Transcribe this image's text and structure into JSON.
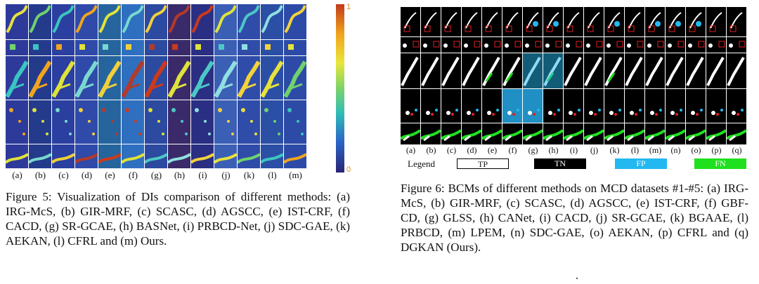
{
  "figure5": {
    "panel_labels": [
      "(a)",
      "(b)",
      "(c)",
      "(d)",
      "(e)",
      "(f)",
      "(g)",
      "(h)",
      "(i)",
      "(j)",
      "(k)",
      "(l)",
      "(m)"
    ],
    "colorbar": {
      "max_label": "1",
      "min_label": "0"
    },
    "caption": "Figure 5: Visualization of DIs comparison of different methods: (a) IRG-McS, (b) GIR-MRF, (c) SCASC, (d) AGSCC, (e) IST-CRF, (f) CACD, (g) SR-GCAE, (h) BASNet, (i) PRBCD-Net, (j) SDC-GAE, (k) AEKAN, (l) CFRL and (m) Ours."
  },
  "figure6": {
    "panel_labels": [
      "(a)",
      "(b)",
      "(c)",
      "(d)",
      "(e)",
      "(f)",
      "(g)",
      "(h)",
      "(i)",
      "(j)",
      "(k)",
      "(l)",
      "(m)",
      "(n)",
      "(o)",
      "(p)",
      "(q)"
    ],
    "legend": {
      "title": "Legend",
      "items": [
        {
          "label": "TP",
          "color": "#ffffff",
          "text_color": "#000000"
        },
        {
          "label": "TN",
          "color": "#000000",
          "text_color": "#ffffff"
        },
        {
          "label": "FP",
          "color": "#23b8ef",
          "text_color": "#ffffff"
        },
        {
          "label": "FN",
          "color": "#1fe01f",
          "text_color": "#ffffff"
        }
      ]
    },
    "caption": "Figure 6: BCMs of different methods on MCD datasets #1-#5: (a) IRG-McS, (b) GIR-MRF, (c) SCASC, (d) AGSCC, (e) IST-CRF, (f) GBF-CD, (g) GLSS, (h) CANet, (i) CACD, (j) SR-GCAE, (k) BGAAE, (l) PRBCD, (m) LPEM, (n) SDC-GAE, (o) AEKAN, (p) CFRL and (q) DGKAN (Ours)."
  }
}
